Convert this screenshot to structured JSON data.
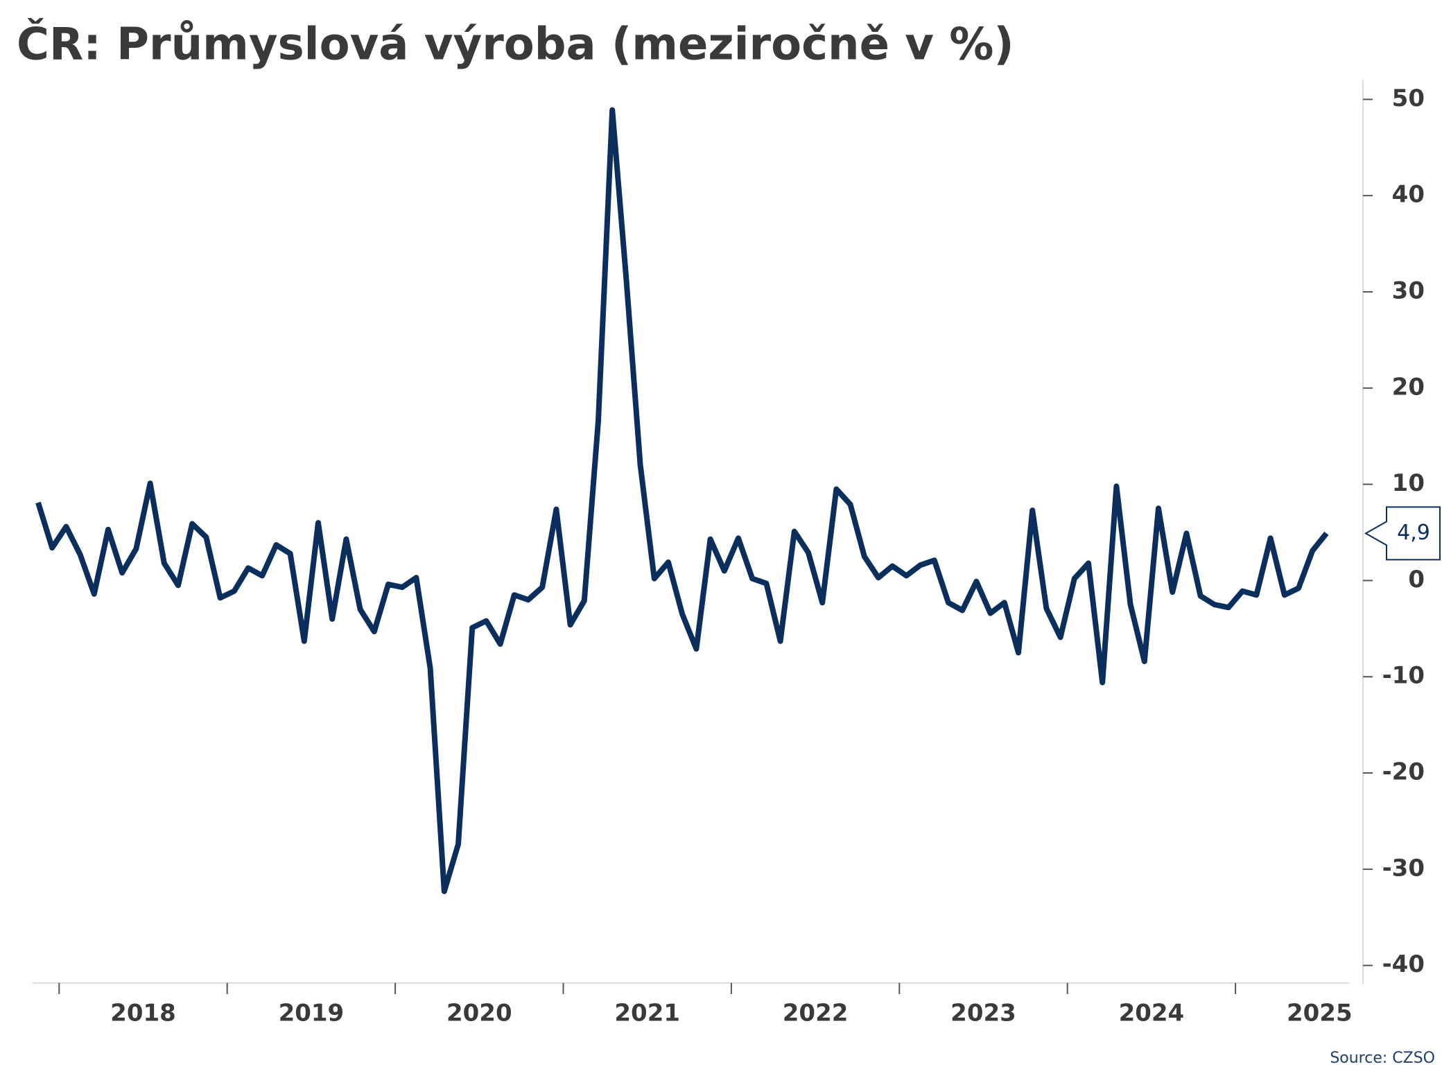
{
  "chart_data": {
    "type": "line",
    "title": "ČR: Průmyslová výroba (meziročně v %)",
    "source": "Source: CZSO",
    "categories": [
      null,
      null,
      null,
      null,
      null,
      null,
      null,
      null,
      "2018",
      null,
      null,
      null,
      null,
      null,
      null,
      null,
      null,
      null,
      null,
      null,
      "2019",
      null,
      null,
      null,
      null,
      null,
      null,
      null,
      null,
      null,
      null,
      null,
      "2020",
      null,
      null,
      null,
      null,
      null,
      null,
      null,
      null,
      null,
      null,
      null,
      "2021",
      null,
      null,
      null,
      null,
      null,
      null,
      null,
      null,
      null,
      null,
      null,
      "2022",
      null,
      null,
      null,
      null,
      null,
      null,
      null,
      null,
      null,
      null,
      null,
      "2023",
      null,
      null,
      null,
      null,
      null,
      null,
      null,
      null,
      null,
      null,
      null,
      "2024",
      null,
      null,
      null,
      null,
      null,
      null,
      null,
      null,
      null,
      null,
      null,
      "2025"
    ],
    "values": [
      8.1,
      3.4,
      5.6,
      2.7,
      -1.4,
      5.3,
      0.8,
      3.3,
      10.1,
      1.8,
      -0.5,
      5.9,
      4.5,
      -1.8,
      -1.1,
      1.3,
      0.5,
      3.7,
      2.8,
      -6.3,
      6.0,
      -4.0,
      4.3,
      -3.0,
      -5.3,
      -0.4,
      -0.7,
      0.3,
      -9.1,
      -32.3,
      -27.4,
      -4.9,
      -4.2,
      -6.6,
      -1.5,
      -2.0,
      -0.7,
      7.4,
      -4.6,
      -2.1,
      16.6,
      48.9,
      31.3,
      12.0,
      0.2,
      1.9,
      -3.5,
      -7.1,
      4.3,
      1.0,
      4.4,
      0.2,
      -0.3,
      -6.3,
      5.1,
      2.9,
      -2.3,
      9.5,
      7.9,
      2.5,
      0.3,
      1.5,
      0.5,
      1.6,
      2.1,
      -2.3,
      -3.1,
      -0.1,
      -3.4,
      -2.3,
      -7.5,
      7.3,
      -2.9,
      -5.9,
      0.2,
      1.8,
      -10.6,
      9.8,
      -2.5,
      -8.4,
      7.5,
      -1.2,
      4.9,
      -1.6,
      -2.5,
      -2.8,
      -1.1,
      -1.5,
      4.4,
      -1.5,
      -0.8,
      3.1,
      4.9
    ],
    "value_labels": {
      "92": "4,9"
    },
    "color": "#0a2f5c",
    "ylim": [
      -42,
      52
    ],
    "yticks": [
      -40,
      -30,
      -20,
      -10,
      0,
      10,
      20,
      30,
      40,
      50
    ],
    "y_axis_side": "right"
  }
}
